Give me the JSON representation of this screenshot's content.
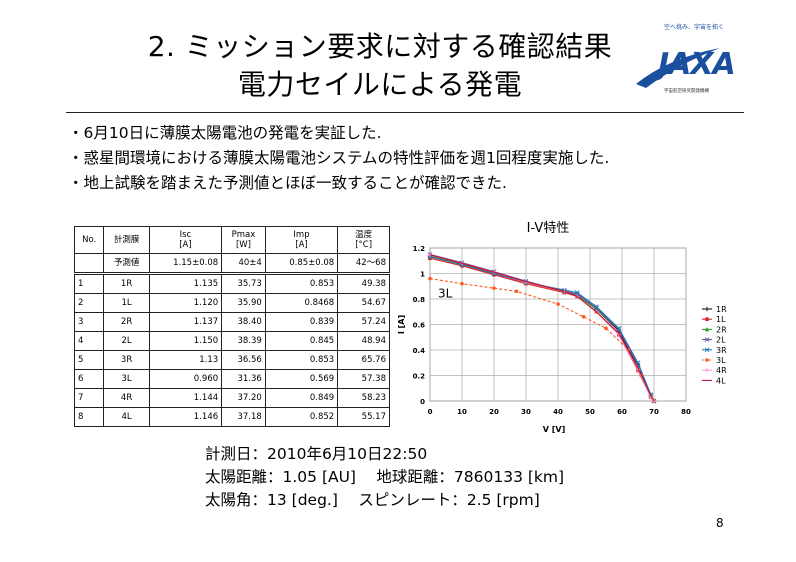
{
  "slide": {
    "title_line1": "2. ミッション要求に対する確認結果",
    "title_line2": "電力セイルによる発電",
    "logo_tagline": "空へ挑み、宇宙を拓く",
    "logo_text": "JAXA",
    "logo_subtext": "宇宙航空研究開発機構",
    "page_number": "8"
  },
  "bullets": [
    "・6月10日に薄膜太陽電池の発電を実証した.",
    "・惑星間環境における薄膜太陽電池システムの特性評価を週1回程度実施した.",
    "・地上試験を踏まえた予測値とほぼ一致することが確認できた."
  ],
  "table": {
    "headers": [
      "No.",
      "計測膜",
      "Isc\n[A]",
      "Pmax\n[W]",
      "Imp\n[A]",
      "温度\n[°C]"
    ],
    "prediction": {
      "label": "予測値",
      "isc": "1.15±0.08",
      "pmax": "40±4",
      "imp": "0.85±0.08",
      "temp": "42～68"
    },
    "rows": [
      {
        "no": "1",
        "film": "1R",
        "isc": "1.135",
        "pmax": "35.73",
        "imp": "0.853",
        "temp": "49.38"
      },
      {
        "no": "2",
        "film": "1L",
        "isc": "1.120",
        "pmax": "35.90",
        "imp": "0.8468",
        "temp": "54.67"
      },
      {
        "no": "3",
        "film": "2R",
        "isc": "1.137",
        "pmax": "38.40",
        "imp": "0.839",
        "temp": "57.24"
      },
      {
        "no": "4",
        "film": "2L",
        "isc": "1.150",
        "pmax": "38.39",
        "imp": "0.845",
        "temp": "48.94"
      },
      {
        "no": "5",
        "film": "3R",
        "isc": "1.13",
        "pmax": "36.56",
        "imp": "0.853",
        "temp": "65.76"
      },
      {
        "no": "6",
        "film": "3L",
        "isc": "0.960",
        "pmax": "31.36",
        "imp": "0.569",
        "temp": "57.38"
      },
      {
        "no": "7",
        "film": "4R",
        "isc": "1.144",
        "pmax": "37.20",
        "imp": "0.849",
        "temp": "58.23"
      },
      {
        "no": "8",
        "film": "4L",
        "isc": "1.146",
        "pmax": "37.18",
        "imp": "0.852",
        "temp": "55.17"
      }
    ]
  },
  "chart_data": {
    "type": "line",
    "title": "I-V特性",
    "xlabel": "V [V]",
    "ylabel": "I [A]",
    "xlim": [
      0,
      80
    ],
    "ylim": [
      0,
      1.2
    ],
    "xticks": [
      0,
      10,
      20,
      30,
      40,
      50,
      60,
      70,
      80
    ],
    "yticks": [
      0,
      0.2,
      0.4,
      0.6,
      0.8,
      1,
      1.2
    ],
    "ytick_labels": [
      "0",
      "0.2",
      "0.4",
      "0.6",
      "0.8",
      "1",
      "1.2"
    ],
    "grid": true,
    "legend_position": "right",
    "annotation": "3L",
    "series": [
      {
        "name": "1R",
        "color": "#111111",
        "marker": "cross",
        "x": [
          0,
          10,
          20,
          30,
          42,
          46,
          52,
          59,
          65,
          69,
          70
        ],
        "y": [
          1.135,
          1.07,
          1.0,
          0.93,
          0.86,
          0.83,
          0.72,
          0.55,
          0.27,
          0.04,
          0
        ]
      },
      {
        "name": "1L",
        "color": "#d62728",
        "marker": "square",
        "x": [
          0,
          10,
          20,
          30,
          42,
          46,
          52,
          59,
          65,
          69,
          70
        ],
        "y": [
          1.12,
          1.06,
          0.99,
          0.92,
          0.85,
          0.82,
          0.7,
          0.52,
          0.24,
          0.03,
          0
        ]
      },
      {
        "name": "2R",
        "color": "#2ca02c",
        "marker": "triangle",
        "x": [
          0,
          10,
          20,
          30,
          42,
          46,
          52,
          59,
          65,
          69,
          70
        ],
        "y": [
          1.137,
          1.075,
          1.01,
          0.93,
          0.86,
          0.83,
          0.72,
          0.56,
          0.29,
          0.05,
          0
        ]
      },
      {
        "name": "2L",
        "color": "#6a51a3",
        "marker": "x",
        "x": [
          0,
          10,
          20,
          30,
          42,
          46,
          52,
          59,
          65,
          69,
          70
        ],
        "y": [
          1.15,
          1.085,
          1.015,
          0.94,
          0.86,
          0.84,
          0.73,
          0.56,
          0.28,
          0.04,
          0
        ]
      },
      {
        "name": "3R",
        "color": "#1f77b4",
        "marker": "x",
        "x": [
          0,
          10,
          20,
          30,
          42,
          46,
          52,
          59,
          65,
          69,
          70
        ],
        "y": [
          1.13,
          1.07,
          1.0,
          0.93,
          0.87,
          0.85,
          0.74,
          0.57,
          0.3,
          0.05,
          0
        ]
      },
      {
        "name": "3L",
        "color": "#ff5a1f",
        "marker": "circle",
        "dashed": true,
        "x": [
          0,
          10,
          20,
          27,
          40,
          48,
          55,
          62,
          66,
          69,
          70
        ],
        "y": [
          0.96,
          0.92,
          0.885,
          0.86,
          0.76,
          0.66,
          0.57,
          0.4,
          0.2,
          0.03,
          0
        ]
      },
      {
        "name": "4R",
        "color": "#ff9ad5",
        "marker": "plus",
        "x": [
          0,
          10,
          20,
          30,
          42,
          46,
          52,
          59,
          65,
          69,
          70
        ],
        "y": [
          1.144,
          1.08,
          1.01,
          0.93,
          0.86,
          0.82,
          0.7,
          0.52,
          0.25,
          0.03,
          0
        ]
      },
      {
        "name": "4L",
        "color": "#c8102e",
        "marker": "none",
        "x": [
          0,
          10,
          20,
          30,
          42,
          46,
          52,
          59,
          65,
          69,
          70
        ],
        "y": [
          1.146,
          1.08,
          1.01,
          0.935,
          0.86,
          0.82,
          0.7,
          0.53,
          0.26,
          0.04,
          0
        ]
      }
    ]
  },
  "caption": {
    "line1": "計測日：2010年6月10日22:50",
    "line2": "太陽距離：1.05 [AU]　 地球距離：7860133 [km]",
    "line3": "太陽角：13 [deg.]　 スピンレート：2.5 [rpm]"
  },
  "colors": {
    "logo_blue": "#1a4fa0",
    "text": "#000000"
  }
}
